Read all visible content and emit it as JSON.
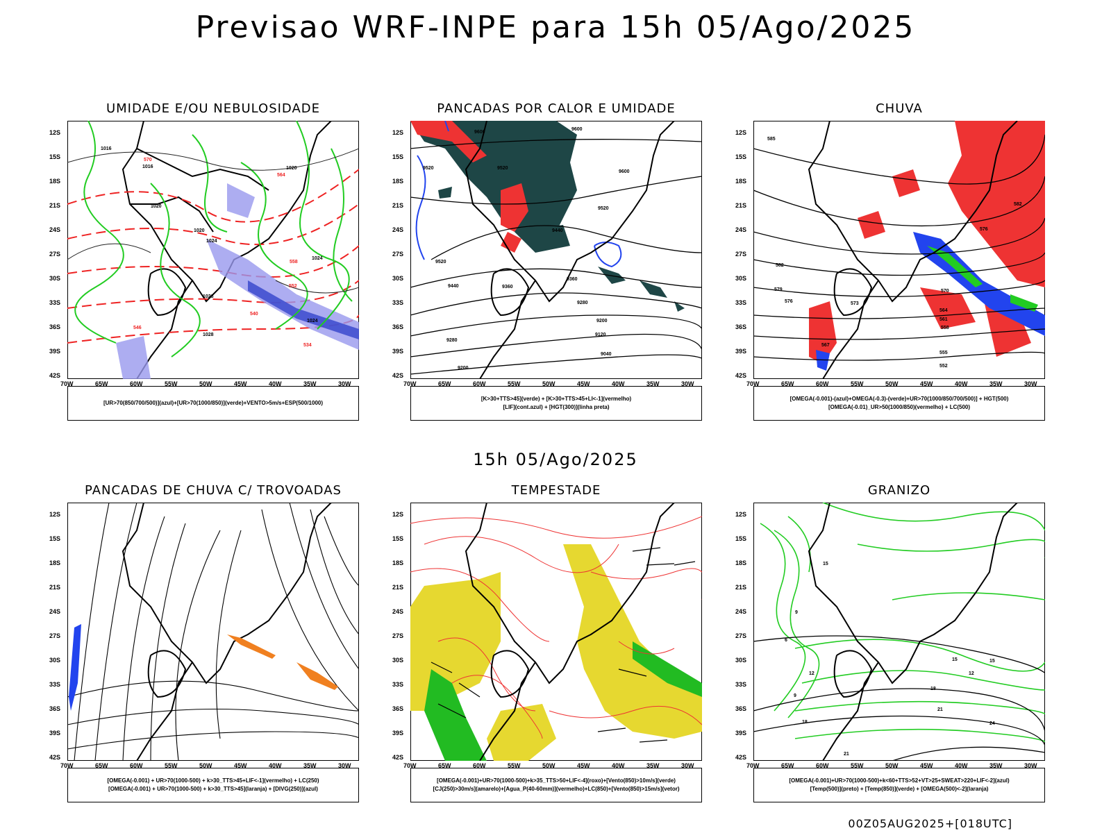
{
  "header": {
    "main_title": "Previsao WRF-INPE  para 15h 05/Ago/2025",
    "mid_title": "15h 05/Ago/2025",
    "footer_stamp": "00Z05AUG2025+[018UTC]"
  },
  "axes": {
    "lat_labels": [
      "12S",
      "15S",
      "18S",
      "21S",
      "24S",
      "27S",
      "30S",
      "33S",
      "36S",
      "39S",
      "42S"
    ],
    "lon_labels": [
      "70W",
      "65W",
      "60W",
      "55W",
      "50W",
      "45W",
      "40W",
      "35W",
      "30W"
    ]
  },
  "panels": [
    {
      "title": "UMIDADE E/OU NEBULOSIDADE",
      "caption": [
        "[UR>70(850/700/500)](azul)+[UR>70(1000/850)](verde)+VENTO>5m/s+ESP(500/1000)"
      ],
      "contour_labels": [
        "1016",
        "1016",
        "1020",
        "1020",
        "1020",
        "1024",
        "1024",
        "1028",
        "1028",
        "1024",
        "570",
        "564",
        "558",
        "552",
        "546",
        "540",
        "534"
      ]
    },
    {
      "title": "PANCADAS POR CALOR E UMIDADE",
      "caption": [
        "[K>30+TTS>45](verde) + [K>30+TTS>45+LI<-1](vermelho)",
        "[LIF](cont.azul) + [HGT(300)](linha preta)"
      ],
      "contour_labels": [
        "9600",
        "9600",
        "9520",
        "9600",
        "9520",
        "9520",
        "9440",
        "9520",
        "9440",
        "9360",
        "9360",
        "9280",
        "9280",
        "9200",
        "9120",
        "9040",
        "9200"
      ]
    },
    {
      "title": "CHUVA",
      "caption": [
        "[OMEGA(-0.001)-(azul)+OMEGA(-0.3)-(verde)+UR>70(1000/850/700/500)] + HGT(500)",
        "[OMEGA(-0.01)_UR>50(1000/850)(vermelho) + LC(500)"
      ],
      "contour_labels": [
        "585",
        "582",
        "579",
        "576",
        "573",
        "570",
        "567",
        "564",
        "561",
        "558",
        "555",
        "552",
        "576",
        "582"
      ]
    },
    {
      "title": "PANCADAS DE CHUVA C/ TROVOADAS",
      "caption": [
        "[OMEGA(-0.001) + UR>70(1000-500) + k>30_TTS>45+LIF<-1](vermelho) + LC(250)",
        "[OMEGA(-0.001) + UR>70(1000-500) + k>30_TTS>45](laranja) + [DIVG(250)](azul)"
      ],
      "contour_labels": []
    },
    {
      "title": "TEMPESTADE",
      "caption": [
        "[OMEGA(-0.001)+UR>70(1000-500)+k>35_TTS>50+LIF<-4](roxo)+[Vento(850)>10m/s](verde)",
        "[CJ(250)>30m/s](amarelo)+[Agua_P(40-60mm)](vermelho)+LC(850)+[Vento(850)>15m/s](vetor)"
      ],
      "contour_labels": []
    },
    {
      "title": "GRANIZO",
      "caption": [
        "[OMEGA(-0.001)+UR>70(1000-500)+k<60+TTS>52+VT>25+SWEAT>220+LIF<-2](azul)",
        "[Temp(500)](preto) + [Temp(850)](verde) + [OMEGA(500)<-2](laranja)"
      ],
      "contour_labels": [
        "15",
        "12",
        "9",
        "18",
        "21",
        "24",
        "21",
        "18",
        "15",
        "12",
        "15",
        "9",
        "6"
      ]
    }
  ],
  "colors": {
    "red": "#ee2222",
    "green": "#22cc22",
    "blue": "#2244ee",
    "lightblue": "#9999ee",
    "darkteal": "#1e4646",
    "yellow": "#e6d830",
    "orange": "#f08020"
  }
}
